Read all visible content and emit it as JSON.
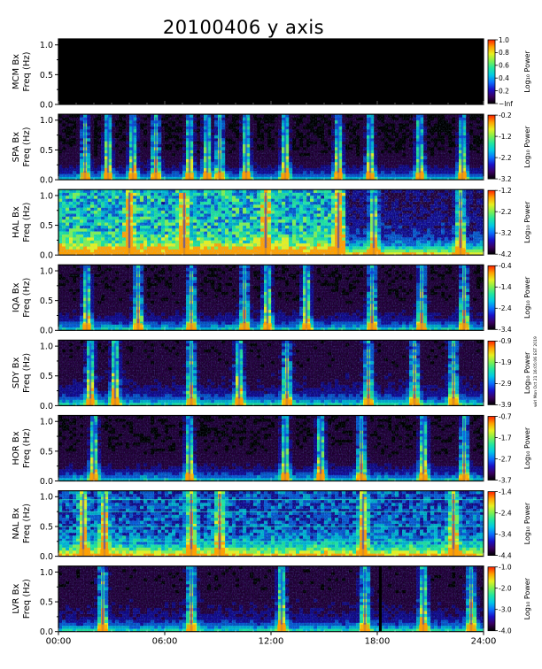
{
  "chart_data": {
    "type": "heatmap",
    "title": "20100406 y axis",
    "xlabel": "",
    "x_ticks": [
      "00:00",
      "06:00",
      "12:00",
      "18:00",
      "24:00"
    ],
    "xlim_hours": [
      0,
      24
    ],
    "y_ticks": [
      "0.0",
      "0.5",
      "1.0"
    ],
    "ylim": [
      0,
      1.1
    ],
    "colorbar_label": "Log₁₀ Power",
    "colormap": [
      "#000000",
      "#3a0060",
      "#1a10c8",
      "#0a70ff",
      "#00c8e6",
      "#20e6a0",
      "#7ef050",
      "#e6f020",
      "#ffa000",
      "#ff2000"
    ],
    "panels": [
      {
        "station_label": "MCM Bx",
        "freq_label": "Freq (Hz)",
        "colorbar_ticks": [
          "1.0",
          "0.8",
          "0.6",
          "0.4",
          "0.2",
          "−Inf"
        ],
        "no_data": true
      },
      {
        "station_label": "SPA Bx",
        "freq_label": "Freq (Hz)",
        "colorbar_ticks": [
          "-0.2",
          "-1.2",
          "-2.2",
          "-3.2"
        ],
        "background_level": 0.12,
        "events_hours": [
          1.5,
          2.8,
          4.2,
          5.5,
          7.4,
          8.4,
          9.1,
          10.6,
          12.8,
          15.8,
          17.6,
          20.4,
          22.8
        ]
      },
      {
        "station_label": "HAL Bx",
        "freq_label": "Freq (Hz)",
        "colorbar_ticks": [
          "-1.2",
          "-2.2",
          "-3.2",
          "-4.2"
        ],
        "background_level": 0.6,
        "active_until_hours": 16.2,
        "events_hours": [
          4.0,
          7.1,
          11.7,
          15.8,
          17.8,
          22.7
        ]
      },
      {
        "station_label": "IQA Bx",
        "freq_label": "Freq (Hz)",
        "colorbar_ticks": [
          "-0.4",
          "-1.4",
          "-2.4",
          "-3.4"
        ],
        "background_level": 0.15,
        "events_hours": [
          1.6,
          4.5,
          7.5,
          10.5,
          11.8,
          14.0,
          17.7,
          20.5,
          22.9
        ]
      },
      {
        "station_label": "SDY Bx",
        "freq_label": "Freq (Hz)",
        "colorbar_ticks": [
          "-0.9",
          "-1.9",
          "-2.9",
          "-3.9"
        ],
        "background_level": 0.18,
        "events_hours": [
          1.8,
          3.2,
          7.5,
          10.2,
          12.9,
          17.5,
          20.1,
          22.3
        ]
      },
      {
        "station_label": "HOR Bx",
        "freq_label": "Freq (Hz)",
        "colorbar_ticks": [
          "-0.7",
          "-1.7",
          "-2.7",
          "-3.7"
        ],
        "background_level": 0.14,
        "events_hours": [
          2.0,
          7.4,
          12.8,
          14.8,
          17.1,
          20.6,
          22.9
        ]
      },
      {
        "station_label": "NAL Bx",
        "freq_label": "Freq (Hz)",
        "colorbar_ticks": [
          "-1.4",
          "-2.4",
          "-3.4",
          "-4.4"
        ],
        "background_level": 0.42,
        "events_hours": [
          1.4,
          2.6,
          7.5,
          9.1,
          17.2,
          22.3
        ],
        "harmonic_lines_hz": [
          0.25,
          0.5,
          0.75,
          0.95
        ]
      },
      {
        "station_label": "LVR Bx",
        "freq_label": "Freq (Hz)",
        "colorbar_ticks": [
          "-1.0",
          "-2.0",
          "-3.0",
          "-4.0"
        ],
        "background_level": 0.18,
        "events_hours": [
          2.5,
          7.5,
          12.6,
          17.3,
          20.6,
          23.3
        ],
        "data_gap_hours": [
          18.1,
          18.25
        ]
      }
    ],
    "grid": false,
    "legend": "colorbar-right"
  },
  "stamp": "wirl Mon Oct 21 16:05:06 EST 2019"
}
